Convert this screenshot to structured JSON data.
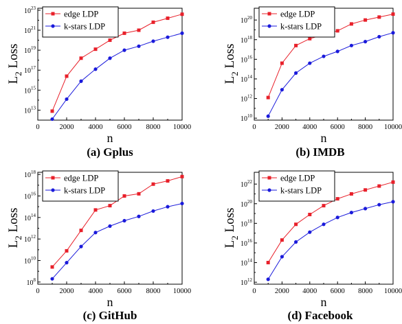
{
  "chart_data": [
    {
      "type": "line",
      "caption": "(a) Gplus",
      "ylabel_main": "L",
      "ylabel_sub": "2",
      "ylabel_rest": " Loss",
      "xlabel": "n",
      "x_ticks": [
        "0",
        "2000",
        "4000",
        "6000",
        "8000",
        "10000"
      ],
      "y_scale": "log",
      "y_tick_exps": [
        13,
        15,
        17,
        19,
        21,
        23
      ],
      "xlim": [
        0,
        10000
      ],
      "ylim_exp": [
        12,
        23.2
      ],
      "x": [
        1000,
        2000,
        3000,
        4000,
        5000,
        6000,
        7000,
        8000,
        9000,
        10000
      ],
      "series": [
        {
          "name": "edge LDP",
          "color": "#e8202a",
          "marker": "square",
          "log10_values": [
            12.9,
            16.4,
            18.2,
            19.1,
            20.0,
            20.7,
            21.0,
            21.8,
            22.2,
            22.6
          ]
        },
        {
          "name": "k-stars LDP",
          "color": "#1a1adb",
          "marker": "circle",
          "log10_values": [
            12.1,
            14.1,
            15.9,
            17.1,
            18.2,
            19.0,
            19.4,
            19.9,
            20.3,
            20.7
          ]
        }
      ]
    },
    {
      "type": "line",
      "caption": "(b) IMDB",
      "ylabel_main": "L",
      "ylabel_sub": "2",
      "ylabel_rest": " Loss",
      "xlabel": "n",
      "x_ticks": [
        "0",
        "2000",
        "4000",
        "6000",
        "8000",
        "10000"
      ],
      "y_scale": "log",
      "y_tick_exps": [
        10,
        12,
        14,
        16,
        18,
        20
      ],
      "xlim": [
        0,
        10000
      ],
      "ylim_exp": [
        9.8,
        21.2
      ],
      "x": [
        1000,
        2000,
        3000,
        4000,
        5000,
        6000,
        7000,
        8000,
        9000,
        10000
      ],
      "series": [
        {
          "name": "edge LDP",
          "color": "#e8202a",
          "marker": "square",
          "log10_values": [
            12.1,
            15.6,
            17.4,
            18.1,
            18.5,
            18.9,
            19.6,
            20.0,
            20.3,
            20.6
          ]
        },
        {
          "name": "k-stars LDP",
          "color": "#1a1adb",
          "marker": "circle",
          "log10_values": [
            10.2,
            12.9,
            14.6,
            15.6,
            16.3,
            16.8,
            17.4,
            17.8,
            18.3,
            18.7
          ]
        }
      ]
    },
    {
      "type": "line",
      "caption": "(c) GitHub",
      "ylabel_main": "L",
      "ylabel_sub": "2",
      "ylabel_rest": " Loss",
      "xlabel": "n",
      "x_ticks": [
        "0",
        "2000",
        "4000",
        "6000",
        "8000",
        "10000"
      ],
      "y_scale": "log",
      "y_tick_exps": [
        8,
        10,
        12,
        14,
        16,
        18
      ],
      "xlim": [
        0,
        10000
      ],
      "ylim_exp": [
        7.8,
        18.2
      ],
      "x": [
        1000,
        2000,
        3000,
        4000,
        5000,
        6000,
        7000,
        8000,
        9000,
        10000
      ],
      "series": [
        {
          "name": "edge LDP",
          "color": "#e8202a",
          "marker": "square",
          "log10_values": [
            9.4,
            10.9,
            12.8,
            14.7,
            15.1,
            16.0,
            16.2,
            17.1,
            17.4,
            17.8
          ]
        },
        {
          "name": "k-stars LDP",
          "color": "#1a1adb",
          "marker": "circle",
          "log10_values": [
            8.3,
            9.8,
            11.3,
            12.6,
            13.2,
            13.7,
            14.1,
            14.6,
            15.0,
            15.3
          ]
        }
      ]
    },
    {
      "type": "line",
      "caption": "(d) Facebook",
      "ylabel_main": "L",
      "ylabel_sub": "2",
      "ylabel_rest": " Loss",
      "xlabel": "n",
      "x_ticks": [
        "0",
        "2000",
        "4000",
        "6000",
        "8000",
        "10000"
      ],
      "y_scale": "log",
      "y_tick_exps": [
        12,
        14,
        16,
        18,
        20,
        22
      ],
      "xlim": [
        0,
        10000
      ],
      "ylim_exp": [
        11.8,
        23.2
      ],
      "x": [
        1000,
        2000,
        3000,
        4000,
        5000,
        6000,
        7000,
        8000,
        9000,
        10000
      ],
      "series": [
        {
          "name": "edge LDP",
          "color": "#e8202a",
          "marker": "square",
          "log10_values": [
            14.0,
            16.3,
            17.9,
            18.9,
            19.8,
            20.5,
            21.0,
            21.4,
            21.8,
            22.2
          ]
        },
        {
          "name": "k-stars LDP",
          "color": "#1a1adb",
          "marker": "circle",
          "log10_values": [
            12.3,
            14.6,
            16.1,
            17.1,
            17.9,
            18.6,
            19.1,
            19.5,
            19.9,
            20.2
          ]
        }
      ]
    }
  ]
}
